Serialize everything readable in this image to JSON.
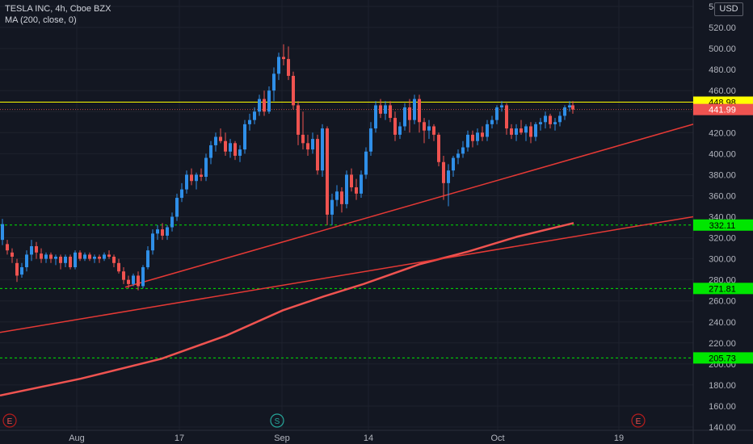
{
  "legend": {
    "symbol": "TESLA INC, 4h, Cboe BZX",
    "indicator": "MA (200, close, 0)"
  },
  "currency_button": "USD",
  "colors": {
    "background": "#131722",
    "up": "#2f8fe8",
    "down": "#ef5350",
    "trendline": "#e53935",
    "ma": "#ef5350",
    "support": "#00e600",
    "resistance": "#ffff00"
  },
  "chart_data": {
    "type": "candlestick",
    "y_axis": {
      "ticks": [
        "140.00",
        "160.00",
        "180.00",
        "200.00",
        "220.00",
        "240.00",
        "260.00",
        "280.00",
        "300.00",
        "320.00",
        "340.00",
        "360.00",
        "380.00",
        "400.00",
        "420.00",
        "440.00",
        "460.00",
        "480.00",
        "500.00",
        "520.00",
        "540.00"
      ],
      "range": [
        137,
        546
      ]
    },
    "x_axis": {
      "ticks": [
        "Aug",
        "17",
        "Sep",
        "14",
        "Oct",
        "19"
      ]
    },
    "price_tags": [
      {
        "label": "448.98",
        "value": 448.98,
        "style": "resistance"
      },
      {
        "label": "441.99",
        "value": 441.99,
        "style": "last"
      },
      {
        "label": "332.11",
        "value": 332.11,
        "style": "support"
      },
      {
        "label": "271.81",
        "value": 271.81,
        "style": "support"
      },
      {
        "label": "205.73",
        "value": 205.73,
        "style": "support"
      }
    ],
    "horizontal_lines": [
      {
        "value": 448.98,
        "style": "solid",
        "color": "#ffff00"
      },
      {
        "value": 332.11,
        "style": "dashed",
        "color": "#00e600"
      },
      {
        "value": 271.81,
        "style": "dashed",
        "color": "#00e600"
      },
      {
        "value": 205.73,
        "style": "dashed",
        "color": "#00e600"
      }
    ],
    "ma_200": [
      [
        0,
        170
      ],
      [
        100,
        186
      ],
      [
        200,
        205
      ],
      [
        280,
        227
      ],
      [
        350,
        251
      ],
      [
        400,
        264
      ],
      [
        450,
        276
      ],
      [
        520,
        295
      ],
      [
        580,
        307
      ],
      [
        640,
        321
      ],
      [
        710,
        334
      ]
    ],
    "trendlines": [
      {
        "from": [
          155,
          273
        ],
        "to": [
          858,
          428
        ]
      },
      {
        "from": [
          0,
          230
        ],
        "to": [
          858,
          340
        ]
      }
    ],
    "events": [
      {
        "label": "E",
        "x_index": 12
      },
      {
        "label": "S",
        "x_index": 343
      },
      {
        "label": "E",
        "x_index": 790
      }
    ],
    "candles": [
      [
        3,
        318,
        338,
        313,
        333
      ],
      [
        9,
        314,
        318,
        304,
        308
      ],
      [
        15,
        306,
        310,
        296,
        302
      ],
      [
        21,
        296,
        300,
        278,
        284
      ],
      [
        27,
        285,
        296,
        282,
        292
      ],
      [
        33,
        292,
        308,
        288,
        304
      ],
      [
        39,
        304,
        318,
        298,
        312
      ],
      [
        45,
        312,
        316,
        300,
        306
      ],
      [
        51,
        305,
        310,
        296,
        300
      ],
      [
        57,
        300,
        306,
        296,
        304
      ],
      [
        63,
        304,
        306,
        296,
        300
      ],
      [
        69,
        300,
        304,
        294,
        302
      ],
      [
        75,
        302,
        304,
        290,
        296
      ],
      [
        81,
        296,
        304,
        292,
        302
      ],
      [
        87,
        302,
        304,
        290,
        292
      ],
      [
        93,
        292,
        308,
        290,
        306
      ],
      [
        99,
        306,
        308,
        298,
        300
      ],
      [
        105,
        300,
        306,
        298,
        304
      ],
      [
        111,
        304,
        306,
        298,
        300
      ],
      [
        117,
        300,
        304,
        296,
        302
      ],
      [
        123,
        302,
        304,
        296,
        300
      ],
      [
        129,
        300,
        306,
        298,
        304
      ],
      [
        135,
        304,
        308,
        300,
        302
      ],
      [
        141,
        302,
        304,
        292,
        296
      ],
      [
        147,
        296,
        300,
        286,
        288
      ],
      [
        153,
        288,
        292,
        276,
        280
      ],
      [
        159,
        280,
        284,
        272,
        276
      ],
      [
        165,
        276,
        286,
        274,
        284
      ],
      [
        171,
        284,
        288,
        270,
        274
      ],
      [
        177,
        274,
        294,
        272,
        292
      ],
      [
        183,
        292,
        312,
        290,
        308
      ],
      [
        189,
        308,
        328,
        304,
        324
      ],
      [
        195,
        324,
        332,
        318,
        328
      ],
      [
        201,
        328,
        334,
        318,
        322
      ],
      [
        207,
        322,
        332,
        318,
        330
      ],
      [
        213,
        330,
        344,
        326,
        340
      ],
      [
        219,
        340,
        362,
        336,
        358
      ],
      [
        225,
        358,
        372,
        354,
        366
      ],
      [
        231,
        366,
        384,
        362,
        380
      ],
      [
        237,
        380,
        386,
        370,
        374
      ],
      [
        243,
        374,
        382,
        366,
        380
      ],
      [
        249,
        380,
        386,
        374,
        378
      ],
      [
        255,
        378,
        400,
        374,
        396
      ],
      [
        261,
        396,
        412,
        390,
        408
      ],
      [
        267,
        408,
        420,
        402,
        416
      ],
      [
        273,
        416,
        424,
        410,
        412
      ],
      [
        279,
        412,
        420,
        398,
        402
      ],
      [
        285,
        402,
        414,
        396,
        410
      ],
      [
        291,
        410,
        412,
        394,
        398
      ],
      [
        297,
        398,
        408,
        392,
        404
      ],
      [
        303,
        404,
        432,
        400,
        428
      ],
      [
        309,
        428,
        438,
        422,
        432
      ],
      [
        315,
        432,
        444,
        428,
        440
      ],
      [
        321,
        440,
        456,
        436,
        452
      ],
      [
        327,
        452,
        460,
        436,
        440
      ],
      [
        333,
        440,
        464,
        438,
        460
      ],
      [
        339,
        460,
        482,
        450,
        476
      ],
      [
        345,
        476,
        496,
        470,
        492
      ],
      [
        351,
        492,
        504,
        484,
        490
      ],
      [
        357,
        490,
        502,
        470,
        474
      ],
      [
        363,
        474,
        478,
        442,
        446
      ],
      [
        369,
        446,
        450,
        408,
        418
      ],
      [
        375,
        418,
        440,
        404,
        410
      ],
      [
        381,
        410,
        418,
        398,
        404
      ],
      [
        387,
        404,
        420,
        400,
        414
      ],
      [
        393,
        414,
        418,
        380,
        384
      ],
      [
        399,
        384,
        428,
        378,
        424
      ],
      [
        405,
        424,
        426,
        332,
        342
      ],
      [
        411,
        342,
        362,
        332,
        356
      ],
      [
        417,
        356,
        370,
        350,
        364
      ],
      [
        423,
        364,
        368,
        344,
        352
      ],
      [
        429,
        352,
        384,
        348,
        380
      ],
      [
        435,
        380,
        386,
        364,
        368
      ],
      [
        441,
        368,
        376,
        356,
        362
      ],
      [
        447,
        362,
        384,
        358,
        380
      ],
      [
        453,
        380,
        406,
        376,
        402
      ],
      [
        459,
        402,
        430,
        398,
        424
      ],
      [
        465,
        424,
        450,
        420,
        446
      ],
      [
        471,
        446,
        452,
        434,
        438
      ],
      [
        477,
        438,
        450,
        432,
        446
      ],
      [
        483,
        446,
        450,
        430,
        434
      ],
      [
        489,
        434,
        440,
        412,
        418
      ],
      [
        495,
        418,
        430,
        414,
        426
      ],
      [
        501,
        426,
        448,
        422,
        444
      ],
      [
        507,
        444,
        452,
        420,
        432
      ],
      [
        513,
        432,
        456,
        428,
        452
      ],
      [
        519,
        452,
        456,
        420,
        430
      ],
      [
        525,
        430,
        434,
        410,
        422
      ],
      [
        531,
        422,
        432,
        414,
        426
      ],
      [
        537,
        426,
        428,
        412,
        418
      ],
      [
        543,
        418,
        420,
        388,
        392
      ],
      [
        549,
        392,
        398,
        356,
        372
      ],
      [
        555,
        372,
        390,
        350,
        384
      ],
      [
        561,
        384,
        398,
        378,
        396
      ],
      [
        567,
        396,
        404,
        390,
        400
      ],
      [
        573,
        400,
        412,
        396,
        406
      ],
      [
        579,
        406,
        422,
        402,
        418
      ],
      [
        585,
        418,
        422,
        406,
        412
      ],
      [
        591,
        412,
        424,
        408,
        420
      ],
      [
        597,
        420,
        426,
        412,
        416
      ],
      [
        603,
        416,
        432,
        412,
        428
      ],
      [
        609,
        428,
        436,
        424,
        432
      ],
      [
        615,
        432,
        446,
        428,
        444
      ],
      [
        621,
        444,
        450,
        440,
        446
      ],
      [
        627,
        446,
        448,
        418,
        424
      ],
      [
        633,
        424,
        428,
        414,
        418
      ],
      [
        639,
        418,
        428,
        412,
        424
      ],
      [
        645,
        424,
        432,
        418,
        420
      ],
      [
        651,
        420,
        428,
        412,
        426
      ],
      [
        657,
        426,
        430,
        410,
        416
      ],
      [
        663,
        416,
        430,
        412,
        428
      ],
      [
        669,
        428,
        434,
        422,
        430
      ],
      [
        675,
        430,
        440,
        424,
        436
      ],
      [
        681,
        436,
        438,
        424,
        428
      ],
      [
        687,
        428,
        434,
        422,
        430
      ],
      [
        693,
        430,
        440,
        426,
        436
      ],
      [
        699,
        436,
        446,
        432,
        444
      ],
      [
        705,
        444,
        450,
        440,
        446
      ],
      [
        709,
        446,
        450,
        438,
        442
      ]
    ]
  }
}
